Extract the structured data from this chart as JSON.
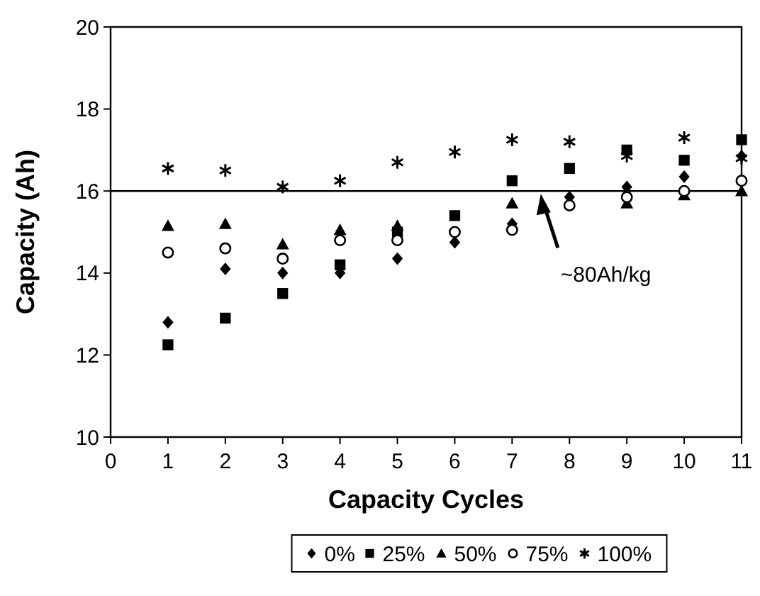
{
  "chart_data": {
    "type": "scatter",
    "xlabel": "Capacity Cycles",
    "ylabel": "Capacity (Ah)",
    "x": [
      1,
      2,
      3,
      4,
      5,
      6,
      7,
      8,
      9,
      10,
      11
    ],
    "xlim": [
      0,
      11
    ],
    "xticks": [
      0,
      1,
      2,
      3,
      4,
      5,
      6,
      7,
      8,
      9,
      10,
      11
    ],
    "ylim": [
      10,
      20
    ],
    "yticks": [
      10,
      12,
      14,
      16,
      18,
      20
    ],
    "grid": false,
    "legend": "bottom",
    "series": [
      {
        "name": "0%",
        "color": "#000000",
        "marker": "diamond",
        "values": [
          12.8,
          14.1,
          14.0,
          14.0,
          14.35,
          14.75,
          15.2,
          15.85,
          16.1,
          16.35,
          16.85
        ]
      },
      {
        "name": "25%",
        "color": "#000000",
        "marker": "square",
        "values": [
          12.25,
          12.9,
          13.5,
          14.2,
          15.0,
          15.4,
          16.25,
          16.55,
          17.0,
          16.75,
          17.25
        ]
      },
      {
        "name": "50%",
        "color": "#000000",
        "marker": "triangle",
        "values": [
          15.15,
          15.2,
          14.7,
          15.05,
          15.15,
          null,
          15.7,
          null,
          15.7,
          15.9,
          16.0
        ]
      },
      {
        "name": "75%",
        "color": "#000000",
        "marker": "circle",
        "values": [
          14.5,
          14.6,
          14.35,
          14.8,
          14.8,
          15.0,
          15.05,
          15.65,
          15.85,
          16.0,
          16.25
        ]
      },
      {
        "name": "100%",
        "color": "#000000",
        "marker": "cross",
        "values": [
          16.55,
          16.5,
          16.1,
          16.25,
          16.7,
          16.95,
          17.25,
          17.2,
          16.85,
          17.3,
          16.8
        ]
      }
    ],
    "ref_lines": [
      {
        "axis": "y",
        "value": 16,
        "color": "#000000"
      }
    ],
    "annotations": [
      "~80Ah/kg"
    ]
  }
}
